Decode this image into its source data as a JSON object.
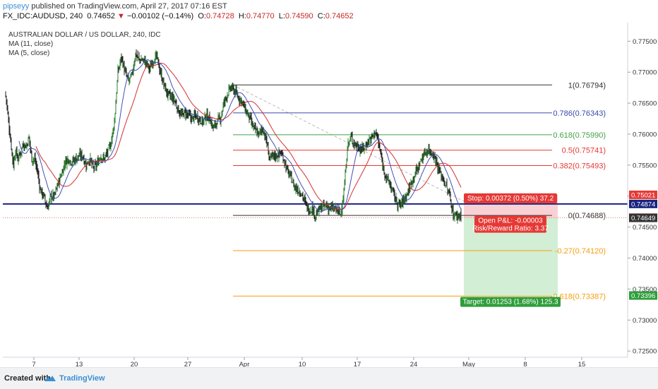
{
  "header": {
    "user": "pipseyy",
    "published": " published on TradingView.com, April 27, 2017 07:16 EST",
    "symbol": "FX_IDC:AUDUSD, 240",
    "last": "0.74652",
    "change": "−0.00102 (−0.14%)",
    "o_label": "O:",
    "o": "0.74728",
    "h_label": "H:",
    "h": "0.74770",
    "l_label": "L:",
    "l": "0.74590",
    "c_label": "C:",
    "c": "0.74652"
  },
  "legend": {
    "title": "AUSTRALIAN DOLLAR / US DOLLAR, 240, IDC",
    "ma1": "MA (11, close)",
    "ma2": "MA (5, close)"
  },
  "footer": {
    "created": "Created with",
    "brand": "TradingView"
  },
  "colors": {
    "up": "#2e7d32",
    "down": "#222222",
    "ma11": "#d32f2f",
    "ma5": "#3f51b5",
    "stop": "#e53935",
    "target": "#2e9e3b",
    "fib_gray": "#888888",
    "fib_blue": "#3949ab",
    "fib_green": "#43a047",
    "fib_red": "#e53935",
    "fib_orange": "#f59e0b",
    "support": "#1a237e"
  },
  "chart_data": {
    "type": "candlestick",
    "symbol": "AUDUSD",
    "timeframe": "240",
    "ylim": [
      0.724,
      0.778
    ],
    "y_ticks": [
      "0.77500",
      "0.77000",
      "0.76500",
      "0.76000",
      "0.75500",
      "0.75000",
      "0.74500",
      "0.74000",
      "0.73500",
      "0.73000",
      "0.72500"
    ],
    "x_ticks": [
      "7",
      "13",
      "20",
      "27",
      "Apr",
      "10",
      "17",
      "24",
      "May",
      "8",
      "15"
    ],
    "price_path": [
      [
        0,
        0.7668
      ],
      [
        2,
        0.7655
      ],
      [
        5,
        0.762
      ],
      [
        8,
        0.759
      ],
      [
        12,
        0.755
      ],
      [
        15,
        0.7575
      ],
      [
        18,
        0.756
      ],
      [
        22,
        0.757
      ],
      [
        26,
        0.7585
      ],
      [
        30,
        0.758
      ],
      [
        34,
        0.7595
      ],
      [
        38,
        0.756
      ],
      [
        42,
        0.756
      ],
      [
        46,
        0.754
      ],
      [
        50,
        0.751
      ],
      [
        55,
        0.75
      ],
      [
        60,
        0.748
      ],
      [
        65,
        0.75
      ],
      [
        70,
        0.75
      ],
      [
        75,
        0.752
      ],
      [
        80,
        0.7535
      ],
      [
        85,
        0.7555
      ],
      [
        90,
        0.756
      ],
      [
        95,
        0.7555
      ],
      [
        100,
        0.756
      ],
      [
        105,
        0.7565
      ],
      [
        110,
        0.7565
      ],
      [
        115,
        0.755
      ],
      [
        120,
        0.756
      ],
      [
        125,
        0.7545
      ],
      [
        130,
        0.755
      ],
      [
        135,
        0.7565
      ],
      [
        140,
        0.756
      ],
      [
        145,
        0.757
      ],
      [
        150,
        0.7585
      ],
      [
        155,
        0.762
      ],
      [
        160,
        0.77
      ],
      [
        165,
        0.7725
      ],
      [
        170,
        0.77
      ],
      [
        175,
        0.7685
      ],
      [
        180,
        0.7695
      ],
      [
        185,
        0.773
      ],
      [
        190,
        0.772
      ],
      [
        195,
        0.772
      ],
      [
        200,
        0.7715
      ],
      [
        205,
        0.7705
      ],
      [
        210,
        0.772
      ],
      [
        215,
        0.7725
      ],
      [
        220,
        0.77
      ],
      [
        225,
        0.768
      ],
      [
        230,
        0.7665
      ],
      [
        235,
        0.766
      ],
      [
        240,
        0.7655
      ],
      [
        245,
        0.764
      ],
      [
        250,
        0.763
      ],
      [
        255,
        0.7635
      ],
      [
        260,
        0.763
      ],
      [
        265,
        0.7625
      ],
      [
        270,
        0.763
      ],
      [
        275,
        0.7625
      ],
      [
        280,
        0.762
      ],
      [
        285,
        0.763
      ],
      [
        290,
        0.7625
      ],
      [
        295,
        0.761
      ],
      [
        300,
        0.762
      ],
      [
        305,
        0.7625
      ],
      [
        310,
        0.765
      ],
      [
        315,
        0.7665
      ],
      [
        320,
        0.7675
      ],
      [
        325,
        0.767
      ],
      [
        330,
        0.766
      ],
      [
        335,
        0.7655
      ],
      [
        340,
        0.764
      ],
      [
        345,
        0.763
      ],
      [
        350,
        0.7615
      ],
      [
        355,
        0.7605
      ],
      [
        360,
        0.76
      ],
      [
        365,
        0.761
      ],
      [
        370,
        0.759
      ],
      [
        375,
        0.756
      ],
      [
        380,
        0.7565
      ],
      [
        385,
        0.7565
      ],
      [
        390,
        0.757
      ],
      [
        395,
        0.756
      ],
      [
        400,
        0.754
      ],
      [
        405,
        0.753
      ],
      [
        410,
        0.7515
      ],
      [
        415,
        0.751
      ],
      [
        420,
        0.7505
      ],
      [
        425,
        0.749
      ],
      [
        430,
        0.7478
      ],
      [
        435,
        0.748
      ],
      [
        440,
        0.7468
      ],
      [
        445,
        0.7478
      ],
      [
        450,
        0.7482
      ],
      [
        455,
        0.7485
      ],
      [
        460,
        0.748
      ],
      [
        465,
        0.748
      ],
      [
        470,
        0.7478
      ],
      [
        475,
        0.747
      ],
      [
        480,
        0.7505
      ],
      [
        485,
        0.758
      ],
      [
        490,
        0.7595
      ],
      [
        495,
        0.7585
      ],
      [
        500,
        0.758
      ],
      [
        505,
        0.7575
      ],
      [
        510,
        0.758
      ],
      [
        515,
        0.759
      ],
      [
        520,
        0.7595
      ],
      [
        525,
        0.7605
      ],
      [
        530,
        0.758
      ],
      [
        535,
        0.755
      ],
      [
        540,
        0.753
      ],
      [
        545,
        0.752
      ],
      [
        550,
        0.7505
      ],
      [
        555,
        0.749
      ],
      [
        560,
        0.7485
      ],
      [
        565,
        0.7495
      ],
      [
        570,
        0.7505
      ],
      [
        575,
        0.752
      ],
      [
        580,
        0.7535
      ],
      [
        585,
        0.7545
      ],
      [
        590,
        0.756
      ],
      [
        595,
        0.757
      ],
      [
        600,
        0.7575
      ],
      [
        605,
        0.757
      ],
      [
        610,
        0.756
      ],
      [
        615,
        0.754
      ],
      [
        620,
        0.753
      ],
      [
        625,
        0.7515
      ],
      [
        630,
        0.75
      ],
      [
        635,
        0.747
      ],
      [
        640,
        0.7468
      ],
      [
        645,
        0.747
      ],
      [
        650,
        0.7466
      ]
    ],
    "fibonacci": [
      {
        "label": "1(0.76794)",
        "value": 0.76794,
        "color": "#333333"
      },
      {
        "label": "0.786(0.76343)",
        "value": 0.76343,
        "color": "#3949ab"
      },
      {
        "label": "0.618(0.75990)",
        "value": 0.7599,
        "color": "#43a047"
      },
      {
        "label": "0.5(0.75741)",
        "value": 0.75741,
        "color": "#e53935"
      },
      {
        "label": "0.382(0.75493)",
        "value": 0.75493,
        "color": "#e53935"
      },
      {
        "label": "0(0.74688)",
        "value": 0.74688,
        "color": "#333333"
      },
      {
        "label": "-0.27(0.74120)",
        "value": 0.7412,
        "color": "#f59e0b"
      },
      {
        "label": "-0.618(0.73387)",
        "value": 0.73387,
        "color": "#f59e0b"
      }
    ],
    "support_line": 0.74874,
    "price_line": 0.74652,
    "axis_badges": [
      {
        "text": "0.75021",
        "value": 0.75021,
        "bg": "#e53935",
        "fg": "#ffffff"
      },
      {
        "text": "0.74874",
        "value": 0.74874,
        "bg": "#1a237e",
        "fg": "#ffffff"
      },
      {
        "text": "0.74652",
        "value": 0.74652,
        "bg": "#e53935",
        "fg": "#ffffff"
      },
      {
        "text": "0.74649",
        "value": 0.74649,
        "bg": "#333333",
        "fg": "#ffffff"
      },
      {
        "text": "0.73396",
        "value": 0.73396,
        "bg": "#2e9e3b",
        "fg": "#ffffff"
      }
    ],
    "position": {
      "entry": 0.74649,
      "stop": 0.75021,
      "target": 0.73396,
      "stop_label": "Stop: 0.00372 (0.50%) 37.2",
      "pnl_label": "Open P&L: -0.00003",
      "rr_label": "Risk/Reward Ratio: 3.37",
      "target_label": "Target: 0.01253 (1.68%) 125.3"
    }
  }
}
